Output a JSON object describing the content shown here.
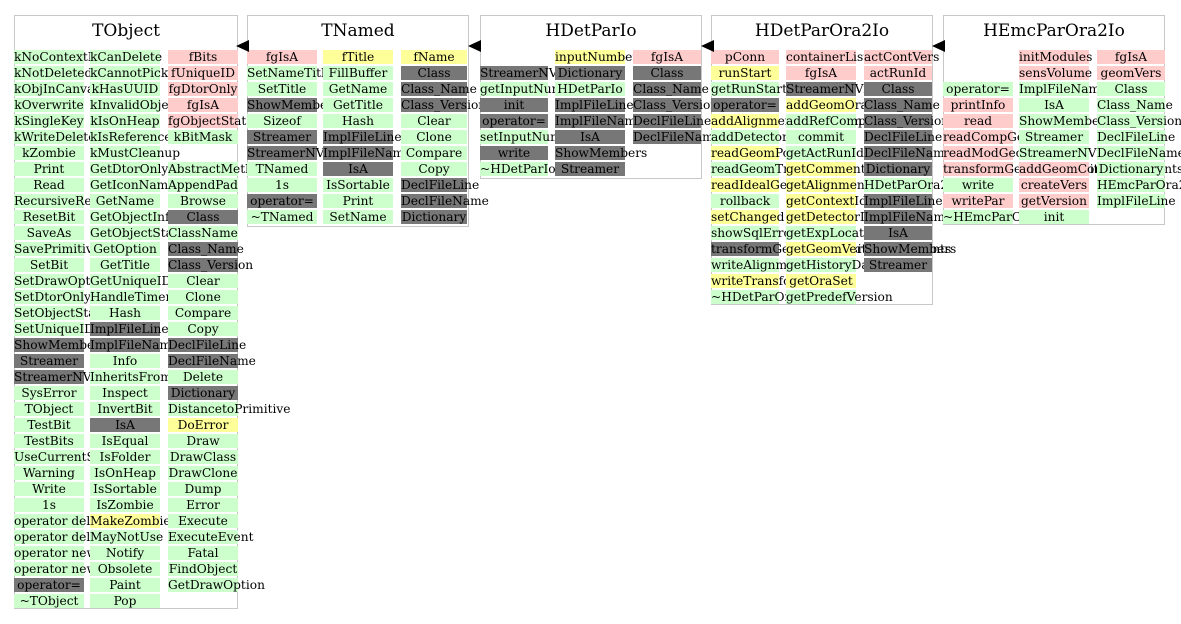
{
  "colors": {
    "g": "#ccffcc",
    "r": "#ffcccc",
    "y": "#ffff99",
    "d": "#777777",
    "border": "#c8c8c8"
  },
  "classes": [
    {
      "name": "TObject",
      "columns": [
        [
          [
            "kNoContextMenu",
            "g"
          ],
          [
            "kNotDeleted",
            "g"
          ],
          [
            "kObjInCanvas",
            "g"
          ],
          [
            "kOverwrite",
            "g"
          ],
          [
            "kSingleKey",
            "g"
          ],
          [
            "kWriteDelete",
            "g"
          ],
          [
            "kZombie",
            "g"
          ],
          [
            "Print",
            "g"
          ],
          [
            "Read",
            "g"
          ],
          [
            "RecursiveRemove",
            "g"
          ],
          [
            "ResetBit",
            "g"
          ],
          [
            "SaveAs",
            "g"
          ],
          [
            "SavePrimitive",
            "g"
          ],
          [
            "SetBit",
            "g"
          ],
          [
            "SetDrawOption",
            "g"
          ],
          [
            "SetDtorOnly",
            "g"
          ],
          [
            "SetObjectStat",
            "g"
          ],
          [
            "SetUniqueID",
            "g"
          ],
          [
            "ShowMembers",
            "d"
          ],
          [
            "Streamer",
            "d"
          ],
          [
            "StreamerNVirtual",
            "d"
          ],
          [
            "SysError",
            "g"
          ],
          [
            "TObject",
            "g"
          ],
          [
            "TestBit",
            "g"
          ],
          [
            "TestBits",
            "g"
          ],
          [
            "UseCurrentStyle",
            "g"
          ],
          [
            "Warning",
            "g"
          ],
          [
            "Write",
            "g"
          ],
          [
            "1s",
            "g"
          ],
          [
            "operator delete",
            "g"
          ],
          [
            "operator delete[]",
            "g"
          ],
          [
            "operator new",
            "g"
          ],
          [
            "operator new[]",
            "g"
          ],
          [
            "operator=",
            "d"
          ],
          [
            "~TObject",
            "g"
          ]
        ],
        [
          [
            "kCanDelete",
            "g"
          ],
          [
            "kCannotPick",
            "g"
          ],
          [
            "kHasUUID",
            "g"
          ],
          [
            "kInvalidObject",
            "g"
          ],
          [
            "kIsOnHeap",
            "g"
          ],
          [
            "kIsReferenced",
            "g"
          ],
          [
            "kMustCleanup",
            "g"
          ],
          [
            "GetDtorOnly",
            "g"
          ],
          [
            "GetIconName",
            "g"
          ],
          [
            "GetName",
            "g"
          ],
          [
            "GetObjectInfo",
            "g"
          ],
          [
            "GetObjectStat",
            "g"
          ],
          [
            "GetOption",
            "g"
          ],
          [
            "GetTitle",
            "g"
          ],
          [
            "GetUniqueID",
            "g"
          ],
          [
            "HandleTimer",
            "g"
          ],
          [
            "Hash",
            "g"
          ],
          [
            "ImplFileLine",
            "d"
          ],
          [
            "ImplFileName",
            "d"
          ],
          [
            "Info",
            "g"
          ],
          [
            "InheritsFrom",
            "g"
          ],
          [
            "Inspect",
            "g"
          ],
          [
            "InvertBit",
            "g"
          ],
          [
            "IsA",
            "d"
          ],
          [
            "IsEqual",
            "g"
          ],
          [
            "IsFolder",
            "g"
          ],
          [
            "IsOnHeap",
            "g"
          ],
          [
            "IsSortable",
            "g"
          ],
          [
            "IsZombie",
            "g"
          ],
          [
            "MakeZombie",
            "y"
          ],
          [
            "MayNotUse",
            "g"
          ],
          [
            "Notify",
            "g"
          ],
          [
            "Obsolete",
            "g"
          ],
          [
            "Paint",
            "g"
          ],
          [
            "Pop",
            "g"
          ]
        ],
        [
          [
            "fBits",
            "r"
          ],
          [
            "fUniqueID",
            "r"
          ],
          [
            "fgDtorOnly",
            "r"
          ],
          [
            "fgIsA",
            "r"
          ],
          [
            "fgObjectStat",
            "r"
          ],
          [
            "kBitMask",
            "g"
          ],
          [
            "",
            ""
          ],
          [
            "AbstractMethod",
            "g"
          ],
          [
            "AppendPad",
            "g"
          ],
          [
            "Browse",
            "g"
          ],
          [
            "Class",
            "d"
          ],
          [
            "ClassName",
            "g"
          ],
          [
            "Class_Name",
            "d"
          ],
          [
            "Class_Version",
            "d"
          ],
          [
            "Clear",
            "g"
          ],
          [
            "Clone",
            "g"
          ],
          [
            "Compare",
            "g"
          ],
          [
            "Copy",
            "g"
          ],
          [
            "DeclFileLine",
            "d"
          ],
          [
            "DeclFileName",
            "d"
          ],
          [
            "Delete",
            "g"
          ],
          [
            "Dictionary",
            "d"
          ],
          [
            "DistancetoPrimitive",
            "g"
          ],
          [
            "DoError",
            "y"
          ],
          [
            "Draw",
            "g"
          ],
          [
            "DrawClass",
            "g"
          ],
          [
            "DrawClone",
            "g"
          ],
          [
            "Dump",
            "g"
          ],
          [
            "Error",
            "g"
          ],
          [
            "Execute",
            "g"
          ],
          [
            "ExecuteEvent",
            "g"
          ],
          [
            "Fatal",
            "g"
          ],
          [
            "FindObject",
            "g"
          ],
          [
            "GetDrawOption",
            "g"
          ]
        ]
      ]
    },
    {
      "name": "TNamed",
      "columns": [
        [
          [
            "fgIsA",
            "r"
          ],
          [
            "SetNameTitle",
            "g"
          ],
          [
            "SetTitle",
            "g"
          ],
          [
            "ShowMembers",
            "d"
          ],
          [
            "Sizeof",
            "g"
          ],
          [
            "Streamer",
            "d"
          ],
          [
            "StreamerNVirtual",
            "d"
          ],
          [
            "TNamed",
            "g"
          ],
          [
            "1s",
            "g"
          ],
          [
            "operator=",
            "d"
          ],
          [
            "~TNamed",
            "g"
          ]
        ],
        [
          [
            "fTitle",
            "y"
          ],
          [
            "FillBuffer",
            "g"
          ],
          [
            "GetName",
            "g"
          ],
          [
            "GetTitle",
            "g"
          ],
          [
            "Hash",
            "g"
          ],
          [
            "ImplFileLine",
            "d"
          ],
          [
            "ImplFileName",
            "d"
          ],
          [
            "IsA",
            "d"
          ],
          [
            "IsSortable",
            "g"
          ],
          [
            "Print",
            "g"
          ],
          [
            "SetName",
            "g"
          ]
        ],
        [
          [
            "fName",
            "y"
          ],
          [
            "Class",
            "d"
          ],
          [
            "Class_Name",
            "d"
          ],
          [
            "Class_Version",
            "d"
          ],
          [
            "Clear",
            "g"
          ],
          [
            "Clone",
            "g"
          ],
          [
            "Compare",
            "g"
          ],
          [
            "Copy",
            "g"
          ],
          [
            "DeclFileLine",
            "d"
          ],
          [
            "DeclFileName",
            "d"
          ],
          [
            "Dictionary",
            "d"
          ]
        ]
      ]
    },
    {
      "name": "HDetParIo",
      "columns": [
        [
          [
            "",
            ""
          ],
          [
            "StreamerNVirtual",
            "d"
          ],
          [
            "getInputNumber",
            "g"
          ],
          [
            "init",
            "d"
          ],
          [
            "operator=",
            "d"
          ],
          [
            "setInputNumber",
            "g"
          ],
          [
            "write",
            "d"
          ],
          [
            "~HDetParIo",
            "g"
          ]
        ],
        [
          [
            "inputNumber",
            "y"
          ],
          [
            "Dictionary",
            "d"
          ],
          [
            "HDetParIo",
            "g"
          ],
          [
            "ImplFileLine",
            "d"
          ],
          [
            "ImplFileName",
            "d"
          ],
          [
            "IsA",
            "d"
          ],
          [
            "ShowMembers",
            "d"
          ],
          [
            "Streamer",
            "d"
          ]
        ],
        [
          [
            "fgIsA",
            "r"
          ],
          [
            "Class",
            "d"
          ],
          [
            "Class_Name",
            "d"
          ],
          [
            "Class_Version",
            "d"
          ],
          [
            "DeclFileLine",
            "d"
          ],
          [
            "DeclFileName",
            "d"
          ]
        ]
      ]
    },
    {
      "name": "HDetParOra2Io",
      "columns": [
        [
          [
            "pConn",
            "r"
          ],
          [
            "runStart",
            "y"
          ],
          [
            "getRunStart",
            "g"
          ],
          [
            "operator=",
            "d"
          ],
          [
            "addAlignmentTransform",
            "y"
          ],
          [
            "addDetectorGeometry",
            "g"
          ],
          [
            "readGeomPoints",
            "y"
          ],
          [
            "readGeomTransform",
            "g"
          ],
          [
            "readIdealGeometry",
            "y"
          ],
          [
            "rollback",
            "g"
          ],
          [
            "setChanged",
            "y"
          ],
          [
            "showSqlError",
            "g"
          ],
          [
            "transformGeomCompositeComponents",
            "d"
          ],
          [
            "writeAlignment",
            "g"
          ],
          [
            "writeTransform",
            "y"
          ],
          [
            "~HDetParOra2Io",
            "g"
          ]
        ],
        [
          [
            "containerList",
            "r"
          ],
          [
            "fgIsA",
            "r"
          ],
          [
            "StreamerNVirtual",
            "d"
          ],
          [
            "addGeomOraSet",
            "y"
          ],
          [
            "addRefComponents",
            "g"
          ],
          [
            "commit",
            "g"
          ],
          [
            "getActRunId",
            "g"
          ],
          [
            "getCommentOutput",
            "y"
          ],
          [
            "getAlignmentVersion",
            "y"
          ],
          [
            "getContextId",
            "y"
          ],
          [
            "getDetectorId",
            "y"
          ],
          [
            "getExpLocation",
            "g"
          ],
          [
            "getGeomVersion",
            "y"
          ],
          [
            "getHistoryDate",
            "g"
          ],
          [
            "getOraSet",
            "y"
          ],
          [
            "getPredefVersion",
            "g"
          ]
        ],
        [
          [
            "actContVers",
            "r"
          ],
          [
            "actRunId",
            "r"
          ],
          [
            "Class",
            "d"
          ],
          [
            "Class_Name",
            "d"
          ],
          [
            "Class_Version",
            "d"
          ],
          [
            "DeclFileLine",
            "d"
          ],
          [
            "DeclFileName",
            "d"
          ],
          [
            "Dictionary",
            "d"
          ],
          [
            "HDetParOra2Io",
            "g"
          ],
          [
            "ImplFileLine",
            "d"
          ],
          [
            "ImplFileName",
            "d"
          ],
          [
            "IsA",
            "d"
          ],
          [
            "ShowMembers",
            "d"
          ],
          [
            "Streamer",
            "d"
          ]
        ]
      ]
    },
    {
      "name": "HEmcParOra2Io",
      "columns": [
        [
          [
            "",
            ""
          ],
          [
            "",
            ""
          ],
          [
            "operator=",
            "g"
          ],
          [
            "printInfo",
            "r"
          ],
          [
            "read",
            "r"
          ],
          [
            "readCompGeomNames",
            "r"
          ],
          [
            "readModGeomNames",
            "r"
          ],
          [
            "transformGeomCompositeComponents",
            "r"
          ],
          [
            "write",
            "g"
          ],
          [
            "writePar",
            "r"
          ],
          [
            "~HEmcParOra2Io",
            "g"
          ]
        ],
        [
          [
            "initModules",
            "r"
          ],
          [
            "sensVolume",
            "r"
          ],
          [
            "ImplFileName",
            "g"
          ],
          [
            "IsA",
            "g"
          ],
          [
            "ShowMembers",
            "g"
          ],
          [
            "Streamer",
            "g"
          ],
          [
            "StreamerNVirtual",
            "g"
          ],
          [
            "addGeomComponents",
            "r"
          ],
          [
            "createVers",
            "r"
          ],
          [
            "getVersion",
            "r"
          ],
          [
            "init",
            "g"
          ]
        ],
        [
          [
            "fgIsA",
            "r"
          ],
          [
            "geomVers",
            "r"
          ],
          [
            "Class",
            "g"
          ],
          [
            "Class_Name",
            "g"
          ],
          [
            "Class_Version",
            "g"
          ],
          [
            "DeclFileLine",
            "g"
          ],
          [
            "DeclFileName",
            "g"
          ],
          [
            "Dictionary",
            "g"
          ],
          [
            "HEmcParOra2Io",
            "g"
          ],
          [
            "ImplFileLine",
            "g"
          ]
        ]
      ]
    }
  ]
}
